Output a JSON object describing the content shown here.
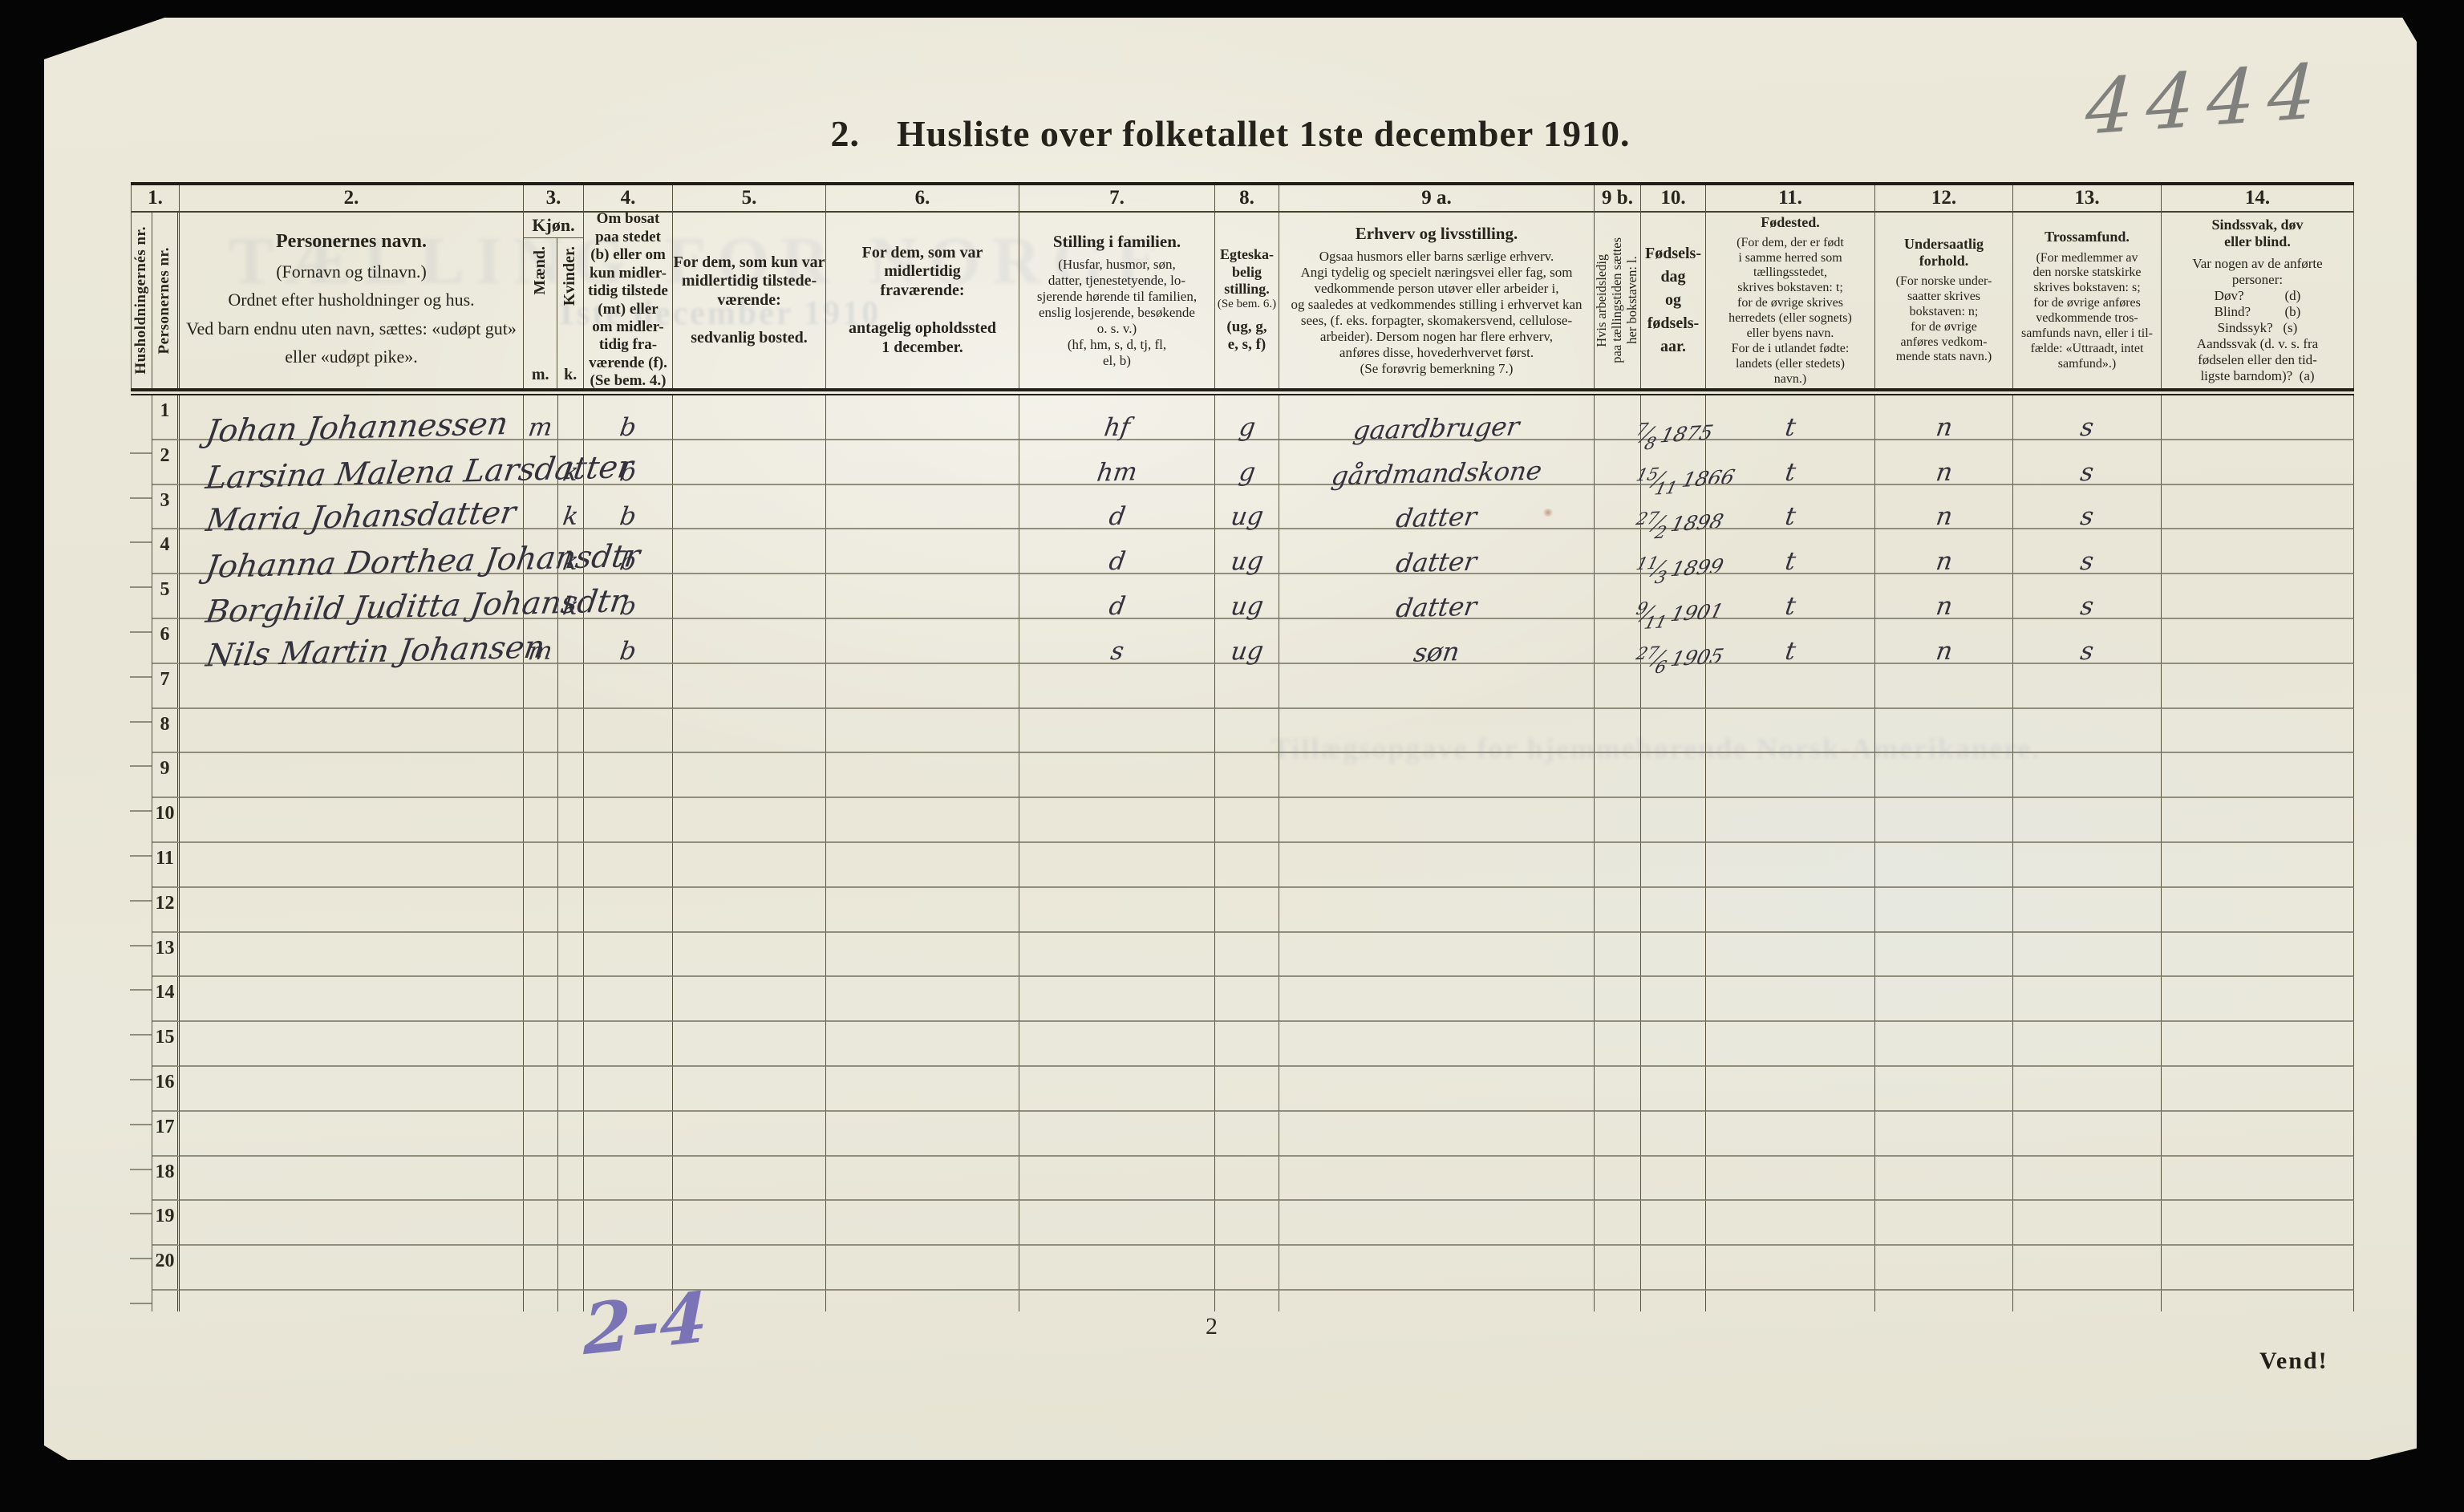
{
  "page": {
    "corner_mark": "4444",
    "title_prefix": "2.",
    "title_main": "Husliste over folketallet 1ste december 1910.",
    "blue_mark": "2-4",
    "page_number": "2",
    "turn_note": "Vend!"
  },
  "ghost": {
    "headline": "TÆLLING FOR NORGE",
    "title_offset": "1ste december 1910",
    "reverse_line": "Tillægsopgave for hjemmehørende Norsk-Amerikanere."
  },
  "table": {
    "header_numbers": {
      "c1": "1.",
      "c2": "2.",
      "c3": "3.",
      "c4": "4.",
      "c5": "5.",
      "c6": "6.",
      "c7": "7.",
      "c8": "8.",
      "c9a": "9 a.",
      "c9b": "9 b.",
      "c10": "10.",
      "c11": "11.",
      "c12": "12.",
      "c13": "13.",
      "c14": "14."
    },
    "header": {
      "colA_vertical": "Husholdningernés nr.",
      "colB_vertical": "Personernes nr.",
      "col2_title": "Personernes navn.",
      "col2_body": "(Fornavn og tilnavn.)\nOrdnet efter husholdninger og hus.\nVed barn endnu uten navn, sættes: «udøpt gut»\neller «udøpt pike».",
      "col3_title": "Kjøn.",
      "col3_m_vertical": "Mænd.",
      "col3_k_vertical": "Kvinder.",
      "col3_m_abbr": "m.",
      "col3_k_abbr": "k.",
      "col4": "Om bosat\npaa stedet\n(b) eller om\nkun midler-\ntidig tilstede\n(mt) eller\nom midler-\ntidig fra-\nværende (f).\n(Se bem. 4.)",
      "col5": "For dem, som kun var\nmidlertidig tilstede-\nværende:\n\nsedvanlig bosted.",
      "col6": "For dem, som var\nmidlertidig\nfraværende:\n\nantagelig opholdssted\n1 december.",
      "col7_title": "Stilling i familien.",
      "col7_body": "(Husfar, husmor, søn,\ndatter, tjenestetyende, lo-\nsjerende hørende til familien,\nenslig losjerende, besøkende\no. s. v.)\n(hf, hm, s, d, tj, fl,\nel, b)",
      "col8_title": "Egteska-\nbelig\nstilling.",
      "col8_note": "(Se bem. 6.)",
      "col8_codes": "(ug, g,\ne, s, f)",
      "col9a_title": "Erhverv og livsstilling.",
      "col9a_body": "Ogsaa husmors eller barns særlige erhverv.\nAngi tydelig og specielt næringsvei eller fag, som\nvedkommende person utøver eller arbeider i,\nog saaledes at vedkommendes stilling i erhvervet kan\nsees, (f. eks. forpagter, skomakersvend, cellulose-\narbeider).  Dersom nogen har flere erhverv,\nanføres disse, hovederhvervet først.\n(Se forøvrig bemerkning 7.)",
      "col9b_vertical": "Hvis arbeidsledig\npaa tællingstiden sættes\nher bokstaven: l.",
      "col10": "Fødsels-\ndag\nog\nfødsels-\naar.",
      "col11_title": "Fødested.",
      "col11_body": "(For dem, der er født\ni samme herred som\ntællingsstedet,\nskrives bokstaven: t;\nfor de øvrige skrives\nherredets (eller sognets)\neller byens navn.\nFor de i utlandet fødte:\nlandets (eller stedets)\nnavn.)",
      "col12_title": "Undersaatlig\nforhold.",
      "col12_body": "(For norske under-\nsaatter skrives\nbokstaven: n;\nfor de øvrige\nanføres vedkom-\nmende stats navn.)",
      "col13_title": "Trossamfund.",
      "col13_body": "(For medlemmer av\nden norske statskirke\nskrives bokstaven: s;\nfor de øvrige anføres\nvedkommende tros-\nsamfunds navn, eller i til-\nfælde: «Uttraadt, intet\nsamfund».)",
      "col14_title": "Sindssvak, døv\neller blind.",
      "col14_body": "Var nogen av de anførte\npersoner:\nDøv?            (d)\nBlind?          (b)\nSindssyk?   (s)\nAandssvak (d. v. s. fra\nfødselen eller den tid-\nligste barndom)?  (a)"
    },
    "rows": [
      {
        "number": "1",
        "name": "Johan Johannessen",
        "sex_m": "m",
        "residency": "b",
        "family_position": "hf",
        "marital_status": "g",
        "occupation": "gaardbruger",
        "birth_day": "7",
        "birth_month": "8",
        "birth_year": "1875",
        "birthplace": "t",
        "citizenship": "n",
        "religion": "s"
      },
      {
        "number": "2",
        "name": "Larsina Malena Larsdatter",
        "sex_k": "k",
        "residency": "b",
        "family_position": "hm",
        "marital_status": "g",
        "occupation": "gårdmandskone",
        "birth_day": "15",
        "birth_month": "11",
        "birth_year": "1866",
        "birthplace": "t",
        "citizenship": "n",
        "religion": "s"
      },
      {
        "number": "3",
        "name": "Maria Johansdatter",
        "sex_k": "k",
        "residency": "b",
        "family_position": "d",
        "marital_status": "ug",
        "occupation": "datter",
        "birth_day": "27",
        "birth_month": "2",
        "birth_year": "1898",
        "birthplace": "t",
        "citizenship": "n",
        "religion": "s"
      },
      {
        "number": "4",
        "name": "Johanna Dorthea Johansdtr",
        "sex_k": "k",
        "residency": "b",
        "family_position": "d",
        "marital_status": "ug",
        "occupation": "datter",
        "birth_day": "11",
        "birth_month": "3",
        "birth_year": "1899",
        "birthplace": "t",
        "citizenship": "n",
        "religion": "s"
      },
      {
        "number": "5",
        "name": "Borghild Juditta Johansdtr",
        "sex_k": "k",
        "residency": "b",
        "family_position": "d",
        "marital_status": "ug",
        "occupation": "datter",
        "birth_day": "9",
        "birth_month": "11",
        "birth_year": "1901",
        "birthplace": "t",
        "citizenship": "n",
        "religion": "s"
      },
      {
        "number": "6",
        "name": "Nils Martin Johansen",
        "sex_m": "m",
        "residency": "b",
        "family_position": "s",
        "marital_status": "ug",
        "occupation": "søn",
        "birth_day": "27",
        "birth_month": "6",
        "birth_year": "1905",
        "birthplace": "t",
        "citizenship": "n",
        "religion": "s"
      },
      {
        "number": "7"
      },
      {
        "number": "8"
      },
      {
        "number": "9"
      },
      {
        "number": "10"
      },
      {
        "number": "11"
      },
      {
        "number": "12"
      },
      {
        "number": "13"
      },
      {
        "number": "14"
      },
      {
        "number": "15"
      },
      {
        "number": "16"
      },
      {
        "number": "17"
      },
      {
        "number": "18"
      },
      {
        "number": "19"
      },
      {
        "number": "20"
      }
    ]
  }
}
